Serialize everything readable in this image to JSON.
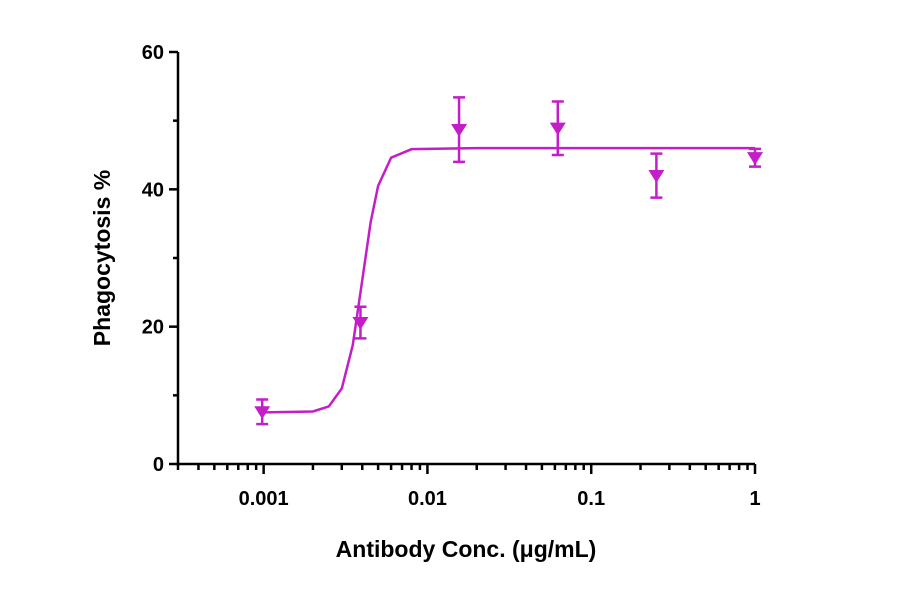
{
  "chart_data": {
    "type": "scatter",
    "x_label": "Antibody Conc. (μg/mL)",
    "y_label": "Phagocytosis %",
    "x_scale": "log",
    "xlim": [
      0.0003,
      1
    ],
    "xticks": [
      0.001,
      0.01,
      0.1,
      1
    ],
    "ylim": [
      0,
      60
    ],
    "yticks": [
      0,
      20,
      40,
      60
    ],
    "series": [
      {
        "type": "scatter",
        "marker": "triangle-down",
        "color": "#c41ec8",
        "x": [
          0.00098,
          0.0039,
          0.0156,
          0.0625,
          0.25,
          1
        ],
        "values": [
          7.6,
          20.6,
          48.7,
          48.9,
          42.0,
          44.6
        ],
        "errors": [
          1.8,
          2.3,
          4.7,
          3.9,
          3.2,
          1.3
        ]
      },
      {
        "type": "line",
        "color": "#c41ec8",
        "x": [
          0.00093,
          0.002,
          0.0025,
          0.003,
          0.0035,
          0.004,
          0.0045,
          0.005,
          0.006,
          0.008,
          0.02,
          0.1,
          1
        ],
        "values": [
          7.5,
          7.65,
          8.38,
          11.0,
          17.3,
          26.75,
          35.2,
          40.5,
          44.6,
          45.85,
          46.0,
          46.0,
          46.0
        ]
      }
    ]
  }
}
